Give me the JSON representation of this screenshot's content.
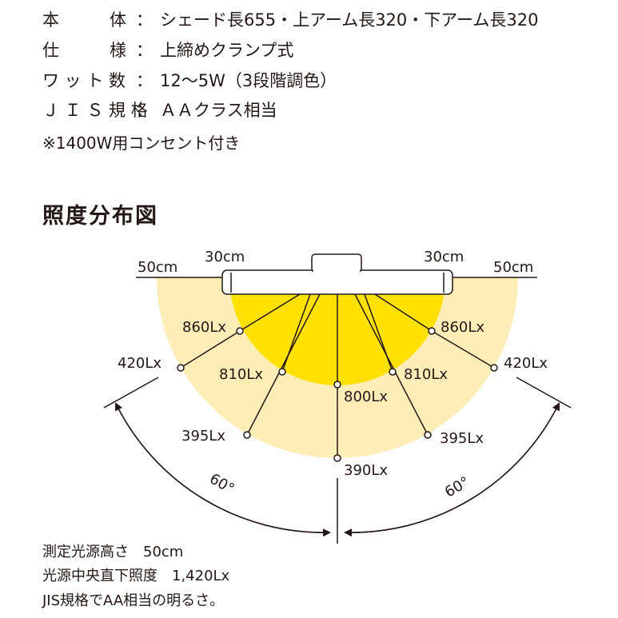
{
  "specs": [
    {
      "label": "本　　　体",
      "sep": "：",
      "value": "シェード長655・上アーム長320・下アーム長320"
    },
    {
      "label": "仕　　　様",
      "sep": "：",
      "value": "上締めクランプ式"
    },
    {
      "label": "ワ ッ ト 数",
      "sep": "：",
      "value": "12〜5W（3段階調色）"
    },
    {
      "label": "Ｊ Ｉ Ｓ 規 格",
      "sep": "：",
      "value": "ＡＡクラス相当"
    }
  ],
  "note": "※1400W用コンセント付き",
  "section_title": "照度分布図",
  "diagram": {
    "dist_left_outer": "50cm",
    "dist_left_inner": "30cm",
    "dist_right_inner": "30cm",
    "dist_right_outer": "50cm",
    "angle_left": "60°",
    "angle_right": "60°",
    "labels": {
      "inner_left": "860Lx",
      "inner_right": "860Lx",
      "outer_left": "420Lx",
      "outer_right": "420Lx",
      "mid_left": "810Lx",
      "mid_right": "810Lx",
      "center_inner": "800Lx",
      "low_left": "395Lx",
      "low_right": "395Lx",
      "center_outer": "390Lx"
    },
    "colors": {
      "inner_zone": "#ffe100",
      "outer_zone": "#fdeeb8",
      "line": "#231815"
    }
  },
  "footer": [
    "測定光源高さ　50cm",
    "光源中央直下照度　1,420Lx",
    "JIS規格でAA相当の明るさ。"
  ]
}
